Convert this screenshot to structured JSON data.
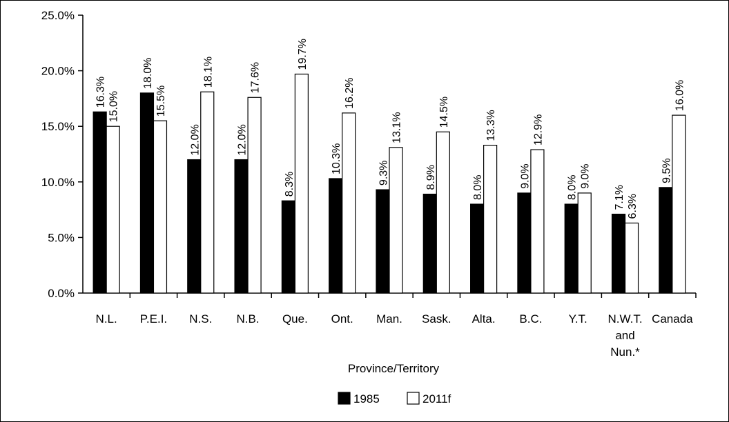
{
  "chart_data": {
    "type": "bar",
    "title": "",
    "xlabel": "Province/Territory",
    "ylabel": "",
    "ylim": [
      0,
      25
    ],
    "y_ticks": [
      "0.0%",
      "5.0%",
      "10.0%",
      "15.0%",
      "20.0%",
      "25.0%"
    ],
    "grid": false,
    "legend_position": "bottom",
    "categories": [
      [
        "N.L."
      ],
      [
        "P.E.I."
      ],
      [
        "N.S."
      ],
      [
        "N.B."
      ],
      [
        "Que."
      ],
      [
        "Ont."
      ],
      [
        "Man."
      ],
      [
        "Sask."
      ],
      [
        "Alta."
      ],
      [
        "B.C."
      ],
      [
        "Y.T."
      ],
      [
        "N.W.T.",
        "and",
        "Nun.*"
      ],
      [
        "Canada"
      ]
    ],
    "series": [
      {
        "name": "1985",
        "color": "#000000",
        "values": [
          16.3,
          18.0,
          12.0,
          12.0,
          8.3,
          10.3,
          9.3,
          8.9,
          8.0,
          9.0,
          8.0,
          7.1,
          9.5
        ],
        "labels": [
          "16.3%",
          "18.0%",
          "12.0%",
          "12.0%",
          "8.3%",
          "10.3%",
          "9.3%",
          "8.9%",
          "8.0%",
          "9.0%",
          "8.0%",
          "7.1%",
          "9.5%"
        ]
      },
      {
        "name": "2011f",
        "color": "#ffffff",
        "values": [
          15.0,
          15.5,
          18.1,
          17.6,
          19.7,
          16.2,
          13.1,
          14.5,
          13.3,
          12.9,
          9.0,
          6.3,
          16.0
        ],
        "labels": [
          "15.0%",
          "15.5%",
          "18.1%",
          "17.6%",
          "19.7%",
          "16.2%",
          "13.1%",
          "14.5%",
          "13.3%",
          "12.9%",
          "9.0%",
          "6.3%",
          "16.0%"
        ]
      }
    ]
  }
}
